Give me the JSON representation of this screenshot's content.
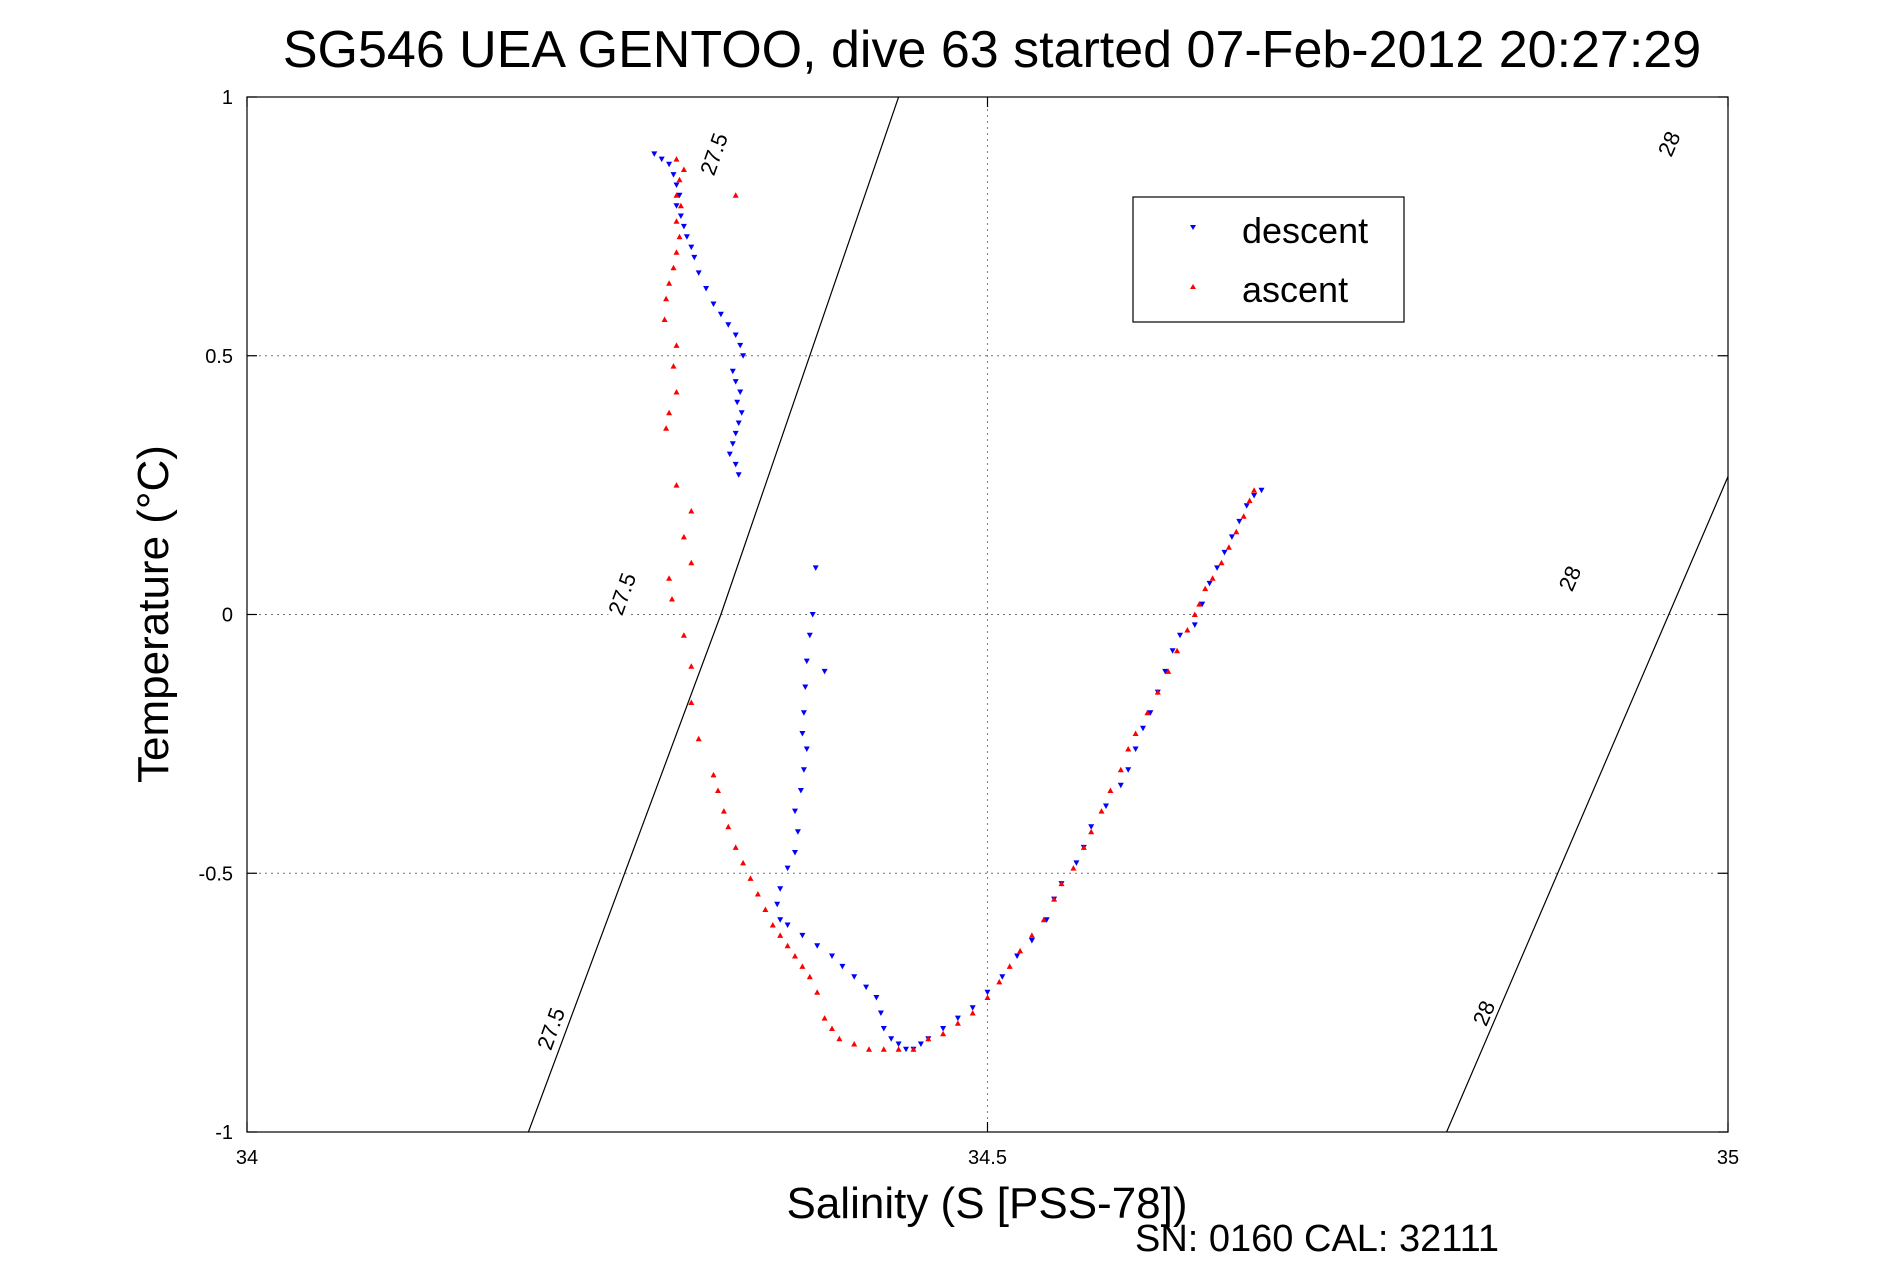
{
  "chart_data": {
    "type": "scatter",
    "title": "SG546 UEA GENTOO, dive 63 started 07-Feb-2012 20:27:29",
    "xlabel": "Salinity (S [PSS-78])",
    "ylabel": "Temperature (°C)",
    "xlim": [
      34,
      35
    ],
    "ylim": [
      -1,
      1
    ],
    "xticks": [
      34,
      34.5,
      35
    ],
    "xtick_labels": [
      "34",
      "34.5",
      "35"
    ],
    "yticks": [
      1,
      0.5,
      0,
      -0.5,
      -1
    ],
    "ytick_labels": [
      "1",
      "0.5",
      "0",
      "-0.5",
      "-1"
    ],
    "grid": true,
    "legend": {
      "placement": "upper-right",
      "entries": [
        "descent",
        "ascent"
      ]
    },
    "footer": "SN: 0160  CAL: 32111",
    "contours": [
      {
        "label": "27.5",
        "color": "#000000",
        "line": [
          [
            34.19,
            -1.0
          ],
          [
            34.32,
            0.0
          ],
          [
            34.44,
            1.0
          ]
        ],
        "labels_at": [
          [
            34.205,
            -0.8
          ],
          [
            34.253,
            0.04
          ],
          [
            34.315,
            0.89
          ]
        ]
      },
      {
        "label": "28",
        "color": "#000000",
        "line": [
          [
            34.81,
            -1.0
          ],
          [
            34.96,
            0.0
          ],
          [
            35.11,
            1.0
          ]
        ],
        "labels_at": [
          [
            34.835,
            -0.77
          ],
          [
            34.893,
            0.07
          ],
          [
            34.96,
            0.91
          ]
        ]
      }
    ],
    "series": [
      {
        "name": "descent",
        "color": "#0000ff",
        "marker": "triangle-down",
        "points": [
          [
            34.275,
            0.89
          ],
          [
            34.28,
            0.88
          ],
          [
            34.285,
            0.87
          ],
          [
            34.288,
            0.85
          ],
          [
            34.29,
            0.83
          ],
          [
            34.292,
            0.81
          ],
          [
            34.29,
            0.79
          ],
          [
            34.293,
            0.77
          ],
          [
            34.295,
            0.75
          ],
          [
            34.297,
            0.73
          ],
          [
            34.3,
            0.71
          ],
          [
            34.302,
            0.69
          ],
          [
            34.305,
            0.66
          ],
          [
            34.31,
            0.63
          ],
          [
            34.315,
            0.6
          ],
          [
            34.32,
            0.58
          ],
          [
            34.325,
            0.56
          ],
          [
            34.33,
            0.54
          ],
          [
            34.333,
            0.52
          ],
          [
            34.335,
            0.5
          ],
          [
            34.328,
            0.47
          ],
          [
            34.33,
            0.45
          ],
          [
            34.333,
            0.43
          ],
          [
            34.331,
            0.41
          ],
          [
            34.334,
            0.39
          ],
          [
            34.332,
            0.37
          ],
          [
            34.33,
            0.35
          ],
          [
            34.328,
            0.33
          ],
          [
            34.326,
            0.31
          ],
          [
            34.33,
            0.29
          ],
          [
            34.332,
            0.27
          ],
          [
            34.384,
            0.09
          ],
          [
            34.382,
            0.0
          ],
          [
            34.38,
            -0.04
          ],
          [
            34.378,
            -0.09
          ],
          [
            34.39,
            -0.11
          ],
          [
            34.377,
            -0.14
          ],
          [
            34.376,
            -0.19
          ],
          [
            34.375,
            -0.23
          ],
          [
            34.378,
            -0.26
          ],
          [
            34.376,
            -0.3
          ],
          [
            34.374,
            -0.34
          ],
          [
            34.37,
            -0.38
          ],
          [
            34.372,
            -0.42
          ],
          [
            34.37,
            -0.46
          ],
          [
            34.365,
            -0.49
          ],
          [
            34.36,
            -0.53
          ],
          [
            34.358,
            -0.56
          ],
          [
            34.36,
            -0.59
          ],
          [
            34.365,
            -0.6
          ],
          [
            34.375,
            -0.62
          ],
          [
            34.385,
            -0.64
          ],
          [
            34.395,
            -0.66
          ],
          [
            34.402,
            -0.68
          ],
          [
            34.41,
            -0.7
          ],
          [
            34.418,
            -0.72
          ],
          [
            34.425,
            -0.74
          ],
          [
            34.428,
            -0.77
          ],
          [
            34.43,
            -0.8
          ],
          [
            34.435,
            -0.82
          ],
          [
            34.44,
            -0.83
          ],
          [
            34.445,
            -0.84
          ],
          [
            34.45,
            -0.84
          ],
          [
            34.455,
            -0.83
          ],
          [
            34.46,
            -0.82
          ],
          [
            34.47,
            -0.8
          ],
          [
            34.48,
            -0.78
          ],
          [
            34.49,
            -0.76
          ],
          [
            34.5,
            -0.73
          ],
          [
            34.51,
            -0.7
          ],
          [
            34.52,
            -0.66
          ],
          [
            34.53,
            -0.63
          ],
          [
            34.54,
            -0.59
          ],
          [
            34.545,
            -0.55
          ],
          [
            34.55,
            -0.52
          ],
          [
            34.56,
            -0.48
          ],
          [
            34.565,
            -0.45
          ],
          [
            34.57,
            -0.41
          ],
          [
            34.58,
            -0.37
          ],
          [
            34.59,
            -0.33
          ],
          [
            34.595,
            -0.3
          ],
          [
            34.6,
            -0.26
          ],
          [
            34.605,
            -0.22
          ],
          [
            34.61,
            -0.19
          ],
          [
            34.615,
            -0.15
          ],
          [
            34.62,
            -0.11
          ],
          [
            34.625,
            -0.07
          ],
          [
            34.63,
            -0.04
          ],
          [
            34.64,
            -0.02
          ],
          [
            34.645,
            0.02
          ],
          [
            34.65,
            0.06
          ],
          [
            34.655,
            0.09
          ],
          [
            34.66,
            0.12
          ],
          [
            34.665,
            0.15
          ],
          [
            34.67,
            0.18
          ],
          [
            34.675,
            0.21
          ],
          [
            34.68,
            0.23
          ],
          [
            34.685,
            0.24
          ]
        ]
      },
      {
        "name": "ascent",
        "color": "#ff0000",
        "marker": "triangle-up",
        "points": [
          [
            34.68,
            0.24
          ],
          [
            34.677,
            0.22
          ],
          [
            34.673,
            0.19
          ],
          [
            34.668,
            0.16
          ],
          [
            34.663,
            0.13
          ],
          [
            34.658,
            0.1
          ],
          [
            34.652,
            0.07
          ],
          [
            34.647,
            0.05
          ],
          [
            34.643,
            0.02
          ],
          [
            34.64,
            0.0
          ],
          [
            34.635,
            -0.03
          ],
          [
            34.628,
            -0.07
          ],
          [
            34.622,
            -0.11
          ],
          [
            34.615,
            -0.15
          ],
          [
            34.608,
            -0.19
          ],
          [
            34.6,
            -0.23
          ],
          [
            34.595,
            -0.26
          ],
          [
            34.59,
            -0.3
          ],
          [
            34.583,
            -0.34
          ],
          [
            34.577,
            -0.38
          ],
          [
            34.57,
            -0.42
          ],
          [
            34.565,
            -0.45
          ],
          [
            34.558,
            -0.49
          ],
          [
            34.55,
            -0.52
          ],
          [
            34.545,
            -0.55
          ],
          [
            34.538,
            -0.59
          ],
          [
            34.53,
            -0.62
          ],
          [
            34.522,
            -0.65
          ],
          [
            34.515,
            -0.68
          ],
          [
            34.508,
            -0.71
          ],
          [
            34.5,
            -0.74
          ],
          [
            34.49,
            -0.77
          ],
          [
            34.48,
            -0.79
          ],
          [
            34.47,
            -0.81
          ],
          [
            34.46,
            -0.82
          ],
          [
            34.45,
            -0.84
          ],
          [
            34.44,
            -0.84
          ],
          [
            34.43,
            -0.84
          ],
          [
            34.42,
            -0.84
          ],
          [
            34.41,
            -0.83
          ],
          [
            34.4,
            -0.82
          ],
          [
            34.395,
            -0.8
          ],
          [
            34.39,
            -0.78
          ],
          [
            34.385,
            -0.73
          ],
          [
            34.38,
            -0.7
          ],
          [
            34.375,
            -0.68
          ],
          [
            34.37,
            -0.66
          ],
          [
            34.365,
            -0.64
          ],
          [
            34.36,
            -0.62
          ],
          [
            34.355,
            -0.6
          ],
          [
            34.35,
            -0.57
          ],
          [
            34.345,
            -0.54
          ],
          [
            34.34,
            -0.51
          ],
          [
            34.335,
            -0.48
          ],
          [
            34.33,
            -0.45
          ],
          [
            34.325,
            -0.41
          ],
          [
            34.322,
            -0.38
          ],
          [
            34.318,
            -0.34
          ],
          [
            34.315,
            -0.31
          ],
          [
            34.305,
            -0.24
          ],
          [
            34.3,
            -0.17
          ],
          [
            34.3,
            -0.1
          ],
          [
            34.295,
            -0.04
          ],
          [
            34.287,
            0.03
          ],
          [
            34.285,
            0.07
          ],
          [
            34.3,
            0.1
          ],
          [
            34.295,
            0.15
          ],
          [
            34.3,
            0.2
          ],
          [
            34.29,
            0.25
          ],
          [
            34.283,
            0.36
          ],
          [
            34.285,
            0.39
          ],
          [
            34.29,
            0.43
          ],
          [
            34.288,
            0.48
          ],
          [
            34.29,
            0.52
          ],
          [
            34.282,
            0.57
          ],
          [
            34.283,
            0.61
          ],
          [
            34.285,
            0.64
          ],
          [
            34.288,
            0.67
          ],
          [
            34.29,
            0.7
          ],
          [
            34.292,
            0.73
          ],
          [
            34.29,
            0.76
          ],
          [
            34.293,
            0.79
          ],
          [
            34.29,
            0.81
          ],
          [
            34.292,
            0.84
          ],
          [
            34.295,
            0.86
          ],
          [
            34.29,
            0.88
          ],
          [
            34.33,
            0.81
          ]
        ]
      }
    ]
  }
}
